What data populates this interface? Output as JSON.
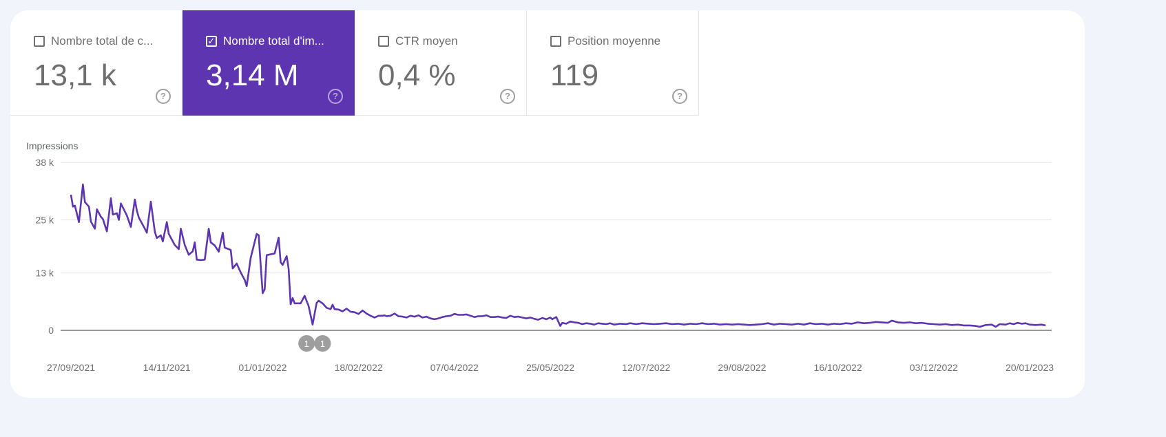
{
  "metrics": [
    {
      "label": "Nombre total de c...",
      "value": "13,1 k",
      "checked": false
    },
    {
      "label": "Nombre total d'im...",
      "value": "3,14 M",
      "checked": true
    },
    {
      "label": "CTR moyen",
      "value": "0,4 %",
      "checked": false
    },
    {
      "label": "Position moyenne",
      "value": "119",
      "checked": false
    }
  ],
  "help_glyph": "?",
  "check_glyph": "✓",
  "colors": {
    "accent": "#5e35b1",
    "line": "#5e35b1"
  },
  "chart_data": {
    "type": "line",
    "ylabel": "Impressions",
    "ylim": [
      0,
      38000
    ],
    "y_ticks": [
      {
        "v": 38000,
        "label": "38 k"
      },
      {
        "v": 25000,
        "label": "25 k"
      },
      {
        "v": 13000,
        "label": "13 k"
      },
      {
        "v": 0,
        "label": "0"
      }
    ],
    "x_start": "27/09/2021",
    "x_unit": "days since 27/09/2021",
    "x_ticks": [
      {
        "d": 0,
        "label": "27/09/2021"
      },
      {
        "d": 48,
        "label": "14/11/2021"
      },
      {
        "d": 96,
        "label": "01/01/2022"
      },
      {
        "d": 144,
        "label": "18/02/2022"
      },
      {
        "d": 192,
        "label": "07/04/2022"
      },
      {
        "d": 240,
        "label": "25/05/2022"
      },
      {
        "d": 288,
        "label": "12/07/2022"
      },
      {
        "d": 336,
        "label": "29/08/2022"
      },
      {
        "d": 384,
        "label": "16/10/2022"
      },
      {
        "d": 432,
        "label": "03/12/2022"
      },
      {
        "d": 480,
        "label": "20/01/2023"
      }
    ],
    "annotations": [
      {
        "d": 118,
        "label": "1"
      },
      {
        "d": 126,
        "label": "1"
      }
    ],
    "series": [
      {
        "name": "Impressions",
        "points": [
          [
            0,
            30700
          ],
          [
            1,
            28000
          ],
          [
            2,
            28200
          ],
          [
            4,
            24500
          ],
          [
            6,
            33000
          ],
          [
            7,
            29000
          ],
          [
            9,
            28000
          ],
          [
            10,
            24600
          ],
          [
            12,
            23000
          ],
          [
            13,
            27400
          ],
          [
            15,
            25700
          ],
          [
            16,
            25200
          ],
          [
            18,
            22400
          ],
          [
            20,
            29900
          ],
          [
            21,
            26200
          ],
          [
            23,
            26500
          ],
          [
            24,
            25000
          ],
          [
            25,
            28700
          ],
          [
            28,
            26000
          ],
          [
            30,
            23400
          ],
          [
            32,
            29600
          ],
          [
            33,
            27100
          ],
          [
            34,
            25500
          ],
          [
            37,
            23000
          ],
          [
            38,
            22100
          ],
          [
            40,
            29100
          ],
          [
            42,
            22300
          ],
          [
            43,
            20900
          ],
          [
            45,
            21500
          ],
          [
            46,
            20100
          ],
          [
            48,
            24500
          ],
          [
            49,
            21800
          ],
          [
            52,
            19300
          ],
          [
            54,
            18400
          ],
          [
            55,
            23000
          ],
          [
            57,
            19300
          ],
          [
            59,
            17100
          ],
          [
            61,
            17900
          ],
          [
            62,
            19900
          ],
          [
            63,
            16000
          ],
          [
            65,
            15900
          ],
          [
            67,
            16000
          ],
          [
            69,
            23000
          ],
          [
            70,
            19900
          ],
          [
            72,
            19200
          ],
          [
            74,
            17800
          ],
          [
            76,
            22100
          ],
          [
            77,
            18700
          ],
          [
            80,
            18200
          ],
          [
            81,
            14000
          ],
          [
            83,
            15100
          ],
          [
            85,
            13100
          ],
          [
            87,
            11400
          ],
          [
            88,
            10000
          ],
          [
            90,
            16400
          ],
          [
            93,
            21800
          ],
          [
            94,
            21500
          ],
          [
            95,
            14800
          ],
          [
            96,
            8400
          ],
          [
            97,
            9300
          ],
          [
            98,
            17000
          ],
          [
            101,
            17300
          ],
          [
            102,
            17400
          ],
          [
            104,
            21000
          ],
          [
            105,
            15400
          ],
          [
            106,
            14800
          ],
          [
            108,
            16800
          ],
          [
            109,
            13900
          ],
          [
            110,
            5900
          ],
          [
            111,
            7300
          ],
          [
            112,
            6100
          ],
          [
            115,
            6100
          ],
          [
            117,
            7800
          ],
          [
            119,
            5500
          ],
          [
            121,
            1300
          ],
          [
            123,
            6200
          ],
          [
            124,
            6700
          ],
          [
            126,
            6100
          ],
          [
            128,
            5100
          ],
          [
            130,
            4800
          ],
          [
            131,
            5800
          ],
          [
            132,
            4800
          ],
          [
            134,
            4700
          ],
          [
            136,
            4300
          ],
          [
            138,
            4900
          ],
          [
            140,
            4200
          ],
          [
            142,
            4100
          ],
          [
            144,
            3700
          ],
          [
            146,
            4500
          ],
          [
            148,
            3800
          ],
          [
            150,
            3300
          ],
          [
            152,
            2900
          ],
          [
            154,
            3300
          ],
          [
            156,
            3300
          ],
          [
            157,
            3400
          ],
          [
            158,
            3200
          ],
          [
            160,
            3300
          ],
          [
            162,
            3800
          ],
          [
            164,
            3200
          ],
          [
            166,
            3100
          ],
          [
            168,
            2900
          ],
          [
            170,
            3300
          ],
          [
            172,
            3100
          ],
          [
            174,
            3400
          ],
          [
            176,
            2900
          ],
          [
            178,
            3100
          ],
          [
            180,
            2700
          ],
          [
            182,
            2500
          ],
          [
            184,
            2700
          ],
          [
            186,
            3000
          ],
          [
            188,
            3200
          ],
          [
            190,
            3300
          ],
          [
            192,
            3700
          ],
          [
            194,
            3500
          ],
          [
            196,
            3500
          ],
          [
            198,
            3600
          ],
          [
            200,
            3300
          ],
          [
            202,
            3000
          ],
          [
            204,
            3200
          ],
          [
            206,
            3200
          ],
          [
            208,
            3400
          ],
          [
            210,
            3000
          ],
          [
            212,
            3000
          ],
          [
            214,
            3100
          ],
          [
            216,
            2900
          ],
          [
            218,
            2800
          ],
          [
            220,
            3300
          ],
          [
            222,
            3000
          ],
          [
            224,
            3100
          ],
          [
            226,
            2900
          ],
          [
            228,
            2700
          ],
          [
            230,
            2900
          ],
          [
            232,
            2600
          ],
          [
            234,
            2400
          ],
          [
            236,
            2800
          ],
          [
            238,
            2500
          ],
          [
            240,
            2900
          ],
          [
            241,
            2500
          ],
          [
            243,
            3000
          ],
          [
            245,
            1000
          ],
          [
            246,
            1700
          ],
          [
            248,
            1500
          ],
          [
            250,
            2000
          ],
          [
            252,
            1800
          ],
          [
            254,
            1700
          ],
          [
            256,
            1400
          ],
          [
            258,
            1600
          ],
          [
            260,
            1500
          ],
          [
            262,
            1300
          ],
          [
            264,
            1600
          ],
          [
            266,
            1500
          ],
          [
            268,
            1400
          ],
          [
            270,
            1600
          ],
          [
            272,
            1300
          ],
          [
            275,
            1500
          ],
          [
            278,
            1400
          ],
          [
            280,
            1600
          ],
          [
            283,
            1400
          ],
          [
            286,
            1600
          ],
          [
            289,
            1500
          ],
          [
            292,
            1400
          ],
          [
            295,
            1500
          ],
          [
            298,
            1600
          ],
          [
            301,
            1400
          ],
          [
            304,
            1500
          ],
          [
            307,
            1300
          ],
          [
            310,
            1500
          ],
          [
            313,
            1400
          ],
          [
            316,
            1600
          ],
          [
            319,
            1400
          ],
          [
            322,
            1500
          ],
          [
            325,
            1300
          ],
          [
            328,
            1400
          ],
          [
            331,
            1300
          ],
          [
            334,
            1400
          ],
          [
            337,
            1300
          ],
          [
            340,
            1200
          ],
          [
            343,
            1300
          ],
          [
            346,
            1400
          ],
          [
            349,
            1600
          ],
          [
            352,
            1300
          ],
          [
            355,
            1500
          ],
          [
            358,
            1400
          ],
          [
            361,
            1300
          ],
          [
            364,
            1500
          ],
          [
            367,
            1300
          ],
          [
            370,
            1600
          ],
          [
            373,
            1400
          ],
          [
            376,
            1500
          ],
          [
            379,
            1300
          ],
          [
            382,
            1500
          ],
          [
            385,
            1400
          ],
          [
            388,
            1600
          ],
          [
            391,
            1500
          ],
          [
            394,
            1800
          ],
          [
            397,
            1600
          ],
          [
            400,
            1700
          ],
          [
            403,
            1900
          ],
          [
            406,
            1800
          ],
          [
            409,
            1700
          ],
          [
            411,
            2200
          ],
          [
            414,
            1800
          ],
          [
            417,
            1700
          ],
          [
            420,
            1800
          ],
          [
            423,
            1600
          ],
          [
            426,
            1700
          ],
          [
            429,
            1500
          ],
          [
            432,
            1400
          ],
          [
            435,
            1300
          ],
          [
            438,
            1400
          ],
          [
            441,
            1200
          ],
          [
            444,
            1300
          ],
          [
            447,
            1100
          ],
          [
            450,
            1100
          ],
          [
            453,
            1000
          ],
          [
            455,
            800
          ],
          [
            458,
            1200
          ],
          [
            461,
            1300
          ],
          [
            463,
            800
          ],
          [
            465,
            1400
          ],
          [
            468,
            1300
          ],
          [
            470,
            1600
          ],
          [
            472,
            1400
          ],
          [
            474,
            1700
          ],
          [
            476,
            1500
          ],
          [
            478,
            1600
          ],
          [
            480,
            1300
          ],
          [
            483,
            1200
          ],
          [
            486,
            1300
          ],
          [
            488,
            1100
          ]
        ]
      }
    ]
  }
}
